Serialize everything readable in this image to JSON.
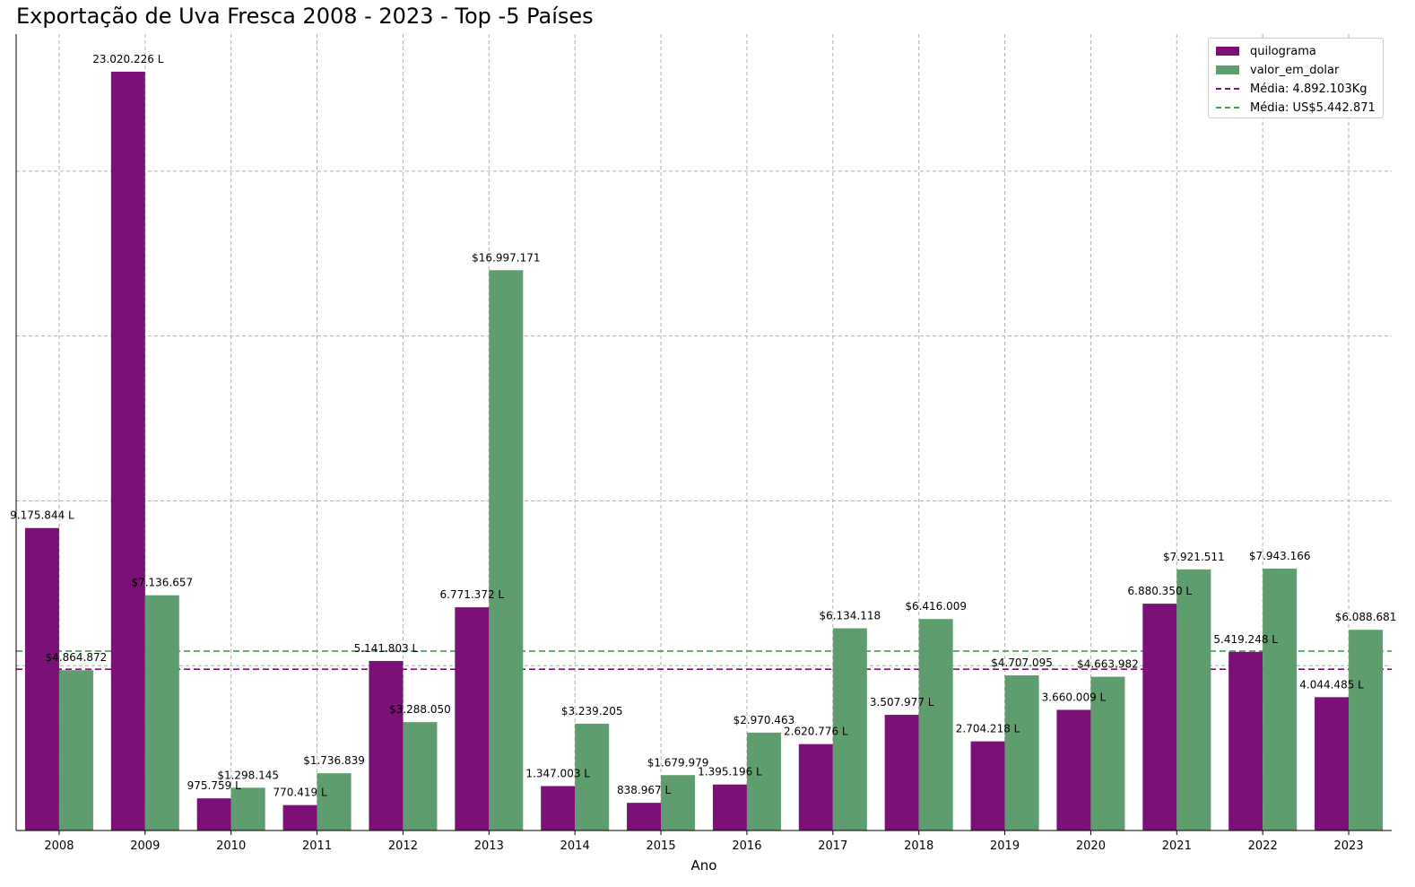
{
  "chart_data": {
    "type": "bar",
    "title": "Exportação de Uva Fresca 2008 - 2023 - Top -5 Países",
    "xlabel": "Ano",
    "ylabel": "",
    "ylim": [
      0,
      24160000
    ],
    "grid": true,
    "legend_position": "top-right",
    "categories": [
      "2008",
      "2009",
      "2010",
      "2011",
      "2012",
      "2013",
      "2014",
      "2015",
      "2016",
      "2017",
      "2018",
      "2019",
      "2020",
      "2021",
      "2022",
      "2023"
    ],
    "series": [
      {
        "name": "quilograma",
        "color": "#7b1077",
        "values": [
          9175844,
          23020226,
          975759,
          770419,
          5141803,
          6771372,
          1347003,
          838967,
          1395196,
          2620776,
          3507977,
          2704218,
          3660009,
          6880350,
          5419248,
          4044485
        ],
        "labels": [
          "9.175.844 L",
          "23.020.226 L",
          "975.759 L",
          "770.419 L",
          "5.141.803 L",
          "6.771.372 L",
          "1.347.003 L",
          "838.967 L",
          "1.395.196 L",
          "2.620.776 L",
          "3.507.977 L",
          "2.704.218 L",
          "3.660.009 L",
          "6.880.350 L",
          "5.419.248 L",
          "4.044.485 L"
        ]
      },
      {
        "name": "valor_em_dolar",
        "color": "#5e9e6e",
        "values": [
          4864872,
          7136657,
          1298145,
          1736839,
          3288050,
          16997171,
          3239205,
          1679979,
          2970463,
          6134118,
          6416009,
          4707095,
          4663982,
          7921511,
          7943166,
          6088681
        ],
        "labels": [
          "$4.864.872",
          "$7.136.657",
          "$1.298.145",
          "$1.736.839",
          "$3.288.050",
          "$16.997.171",
          "$3.239.205",
          "$1.679.979",
          "$2.970.463",
          "$6.134.118",
          "$6.416.009",
          "$4.707.095",
          "$4.663.982",
          "$7.921.511",
          "$7.943.166",
          "$6.088.681"
        ]
      }
    ],
    "reference_lines": [
      {
        "name": "Média: 4.892.103Kg",
        "value": 4892103,
        "color": "#7b1077",
        "style": "dashed"
      },
      {
        "name": "Média: US$5.442.871",
        "value": 5442871,
        "color": "#3fa04f",
        "style": "dashed"
      }
    ]
  }
}
